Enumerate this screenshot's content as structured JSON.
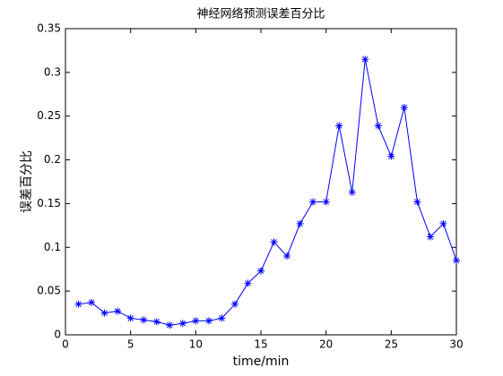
{
  "chart_data": {
    "type": "line",
    "title": "神经网络预测误差百分比",
    "x_label": "time/min",
    "y_label": "误差百分比",
    "x": [
      1,
      2,
      3,
      4,
      5,
      6,
      7,
      8,
      9,
      10,
      11,
      12,
      13,
      14,
      15,
      16,
      17,
      18,
      19,
      20,
      21,
      22,
      23,
      24,
      25,
      26,
      27,
      28,
      29,
      30
    ],
    "values": [
      0.035,
      0.037,
      0.025,
      0.027,
      0.019,
      0.017,
      0.015,
      0.011,
      0.013,
      0.016,
      0.016,
      0.019,
      0.035,
      0.059,
      0.073,
      0.106,
      0.09,
      0.127,
      0.152,
      0.152,
      0.239,
      0.163,
      0.315,
      0.239,
      0.204,
      0.26,
      0.152,
      0.112,
      0.127,
      0.085
    ],
    "color": "#0000ff",
    "xlim": [
      0,
      30
    ],
    "xticks": [
      0,
      5,
      10,
      15,
      20,
      25,
      30
    ],
    "ylim": [
      0,
      0.35
    ],
    "yticks": [
      0,
      0.05,
      0.1,
      0.15,
      0.2,
      0.25,
      0.3,
      0.35
    ],
    "grid": false
  }
}
